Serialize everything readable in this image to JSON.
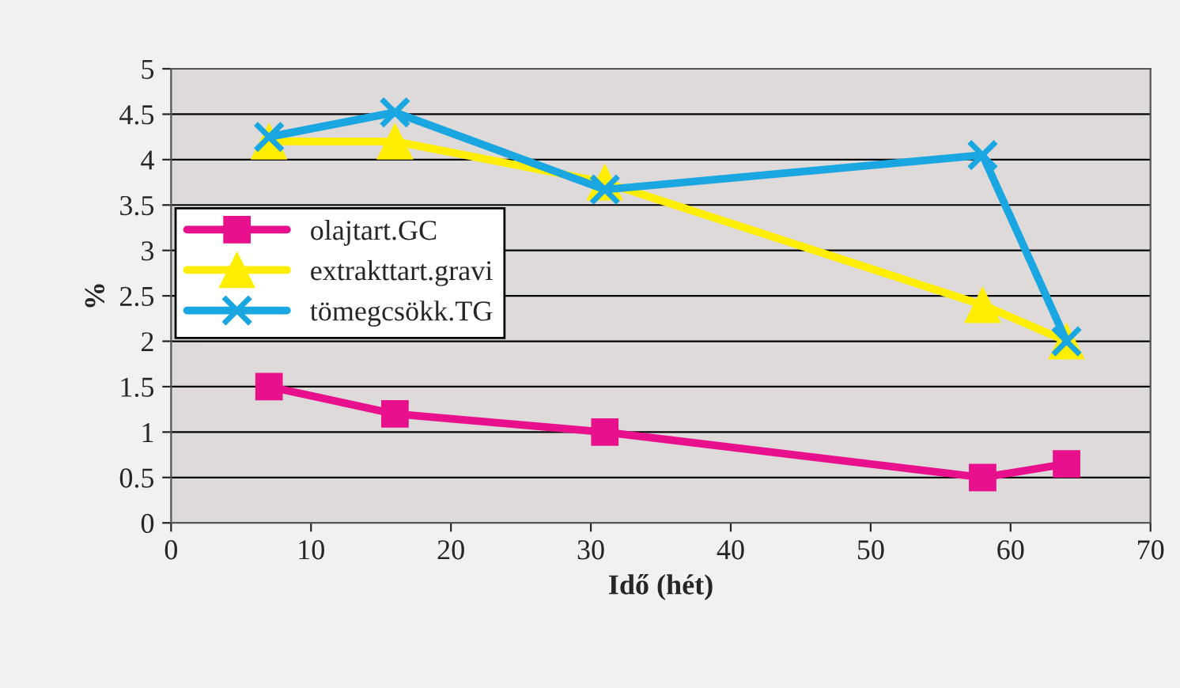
{
  "chart_data": {
    "type": "line",
    "xlabel": "Idő (hét)",
    "ylabel": "%",
    "x": [
      7,
      16,
      31,
      58,
      64
    ],
    "series": [
      {
        "name": "olajtart.GC",
        "color": "#e8108c",
        "marker": "square",
        "values": [
          1.5,
          1.2,
          1.0,
          0.5,
          0.65
        ]
      },
      {
        "name": "extrakttart.gravi",
        "color": "#ffee00",
        "marker": "triangle",
        "values": [
          4.2,
          4.2,
          3.75,
          2.4,
          2.0
        ]
      },
      {
        "name": "tömegcsökk.TG",
        "color": "#1aa6e0",
        "marker": "cross",
        "values": [
          4.25,
          4.52,
          3.67,
          4.05,
          2.0
        ]
      }
    ],
    "xlim": [
      0,
      70
    ],
    "xticks": [
      0,
      10,
      20,
      30,
      40,
      50,
      60,
      70
    ],
    "ylim": [
      0,
      5
    ],
    "yticks": [
      0,
      {
        "value": 0.5,
        "label": "0.5"
      },
      1,
      {
        "value": 1.5,
        "label": "1.5"
      },
      2,
      {
        "value": 2.5,
        "label": "2.5"
      },
      3,
      {
        "value": 3.5,
        "label": "3.5"
      },
      4,
      {
        "value": 4.5,
        "label": "4.5"
      },
      5
    ],
    "grid": "y",
    "legend": "left",
    "line_style": "solid"
  }
}
